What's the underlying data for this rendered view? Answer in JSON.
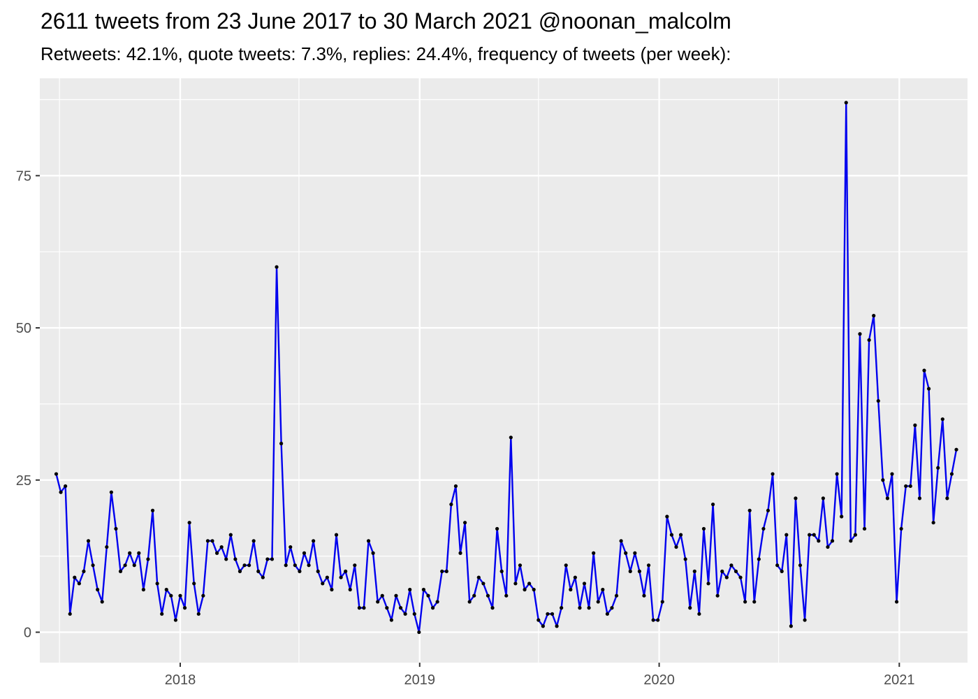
{
  "chart_data": {
    "type": "line",
    "title": "2611 tweets from 23 June 2017 to 30 March 2021 @noonan_malcolm",
    "subtitle": "Retweets: 42.1%, quote tweets: 7.3%, replies: 24.4%, frequency of tweets (per week):",
    "xlabel": "",
    "ylabel": "",
    "x_start": "2017-06-26",
    "x_interval": "1 week",
    "xlim": [
      "2017-06-01",
      "2021-04-15"
    ],
    "ylim": [
      -5,
      91
    ],
    "x_ticks": [
      "2018",
      "2019",
      "2020",
      "2021"
    ],
    "y_ticks": [
      "0",
      "25",
      "50",
      "75"
    ],
    "grid": true,
    "line_color": "#0000ee",
    "point_color": "#000000",
    "panel_color": "#ebebeb",
    "series": [
      {
        "values": [
          26,
          23,
          24,
          3,
          9,
          8,
          10,
          15,
          11,
          7,
          5,
          14,
          23,
          17,
          10,
          11,
          13,
          11,
          13,
          7,
          12,
          20,
          8,
          3,
          7,
          6,
          2,
          6,
          4,
          18,
          8,
          3,
          6,
          15,
          15,
          13,
          14,
          12,
          16,
          12,
          10,
          11,
          11,
          15,
          10,
          9,
          12,
          12,
          60,
          31,
          11,
          14,
          11,
          10,
          13,
          11,
          15,
          10,
          8,
          9,
          7,
          16,
          9,
          10,
          7,
          11,
          4,
          4,
          15,
          13,
          5,
          6,
          4,
          2,
          6,
          4,
          3,
          7,
          3,
          0,
          7,
          6,
          4,
          5,
          10,
          10,
          21,
          24,
          13,
          18,
          5,
          6,
          9,
          8,
          6,
          4,
          17,
          10,
          6,
          32,
          8,
          11,
          7,
          8,
          7,
          2,
          1,
          3,
          3,
          1,
          4,
          11,
          7,
          9,
          4,
          8,
          4,
          13,
          5,
          7,
          3,
          4,
          6,
          15,
          13,
          10,
          13,
          10,
          6,
          11,
          2,
          2,
          5,
          19,
          16,
          14,
          16,
          12,
          4,
          10,
          3,
          17,
          8,
          21,
          6,
          10,
          9,
          11,
          10,
          9,
          5,
          20,
          5,
          12,
          17,
          20,
          26,
          11,
          10,
          16,
          1,
          22,
          11,
          2,
          16,
          16,
          15,
          22,
          14,
          15,
          26,
          19,
          87,
          15,
          16,
          49,
          17,
          48,
          52,
          38,
          25,
          22,
          26,
          5,
          17,
          24,
          24,
          34,
          22,
          43,
          40,
          18,
          27,
          35,
          22,
          26,
          30
        ]
      }
    ]
  }
}
